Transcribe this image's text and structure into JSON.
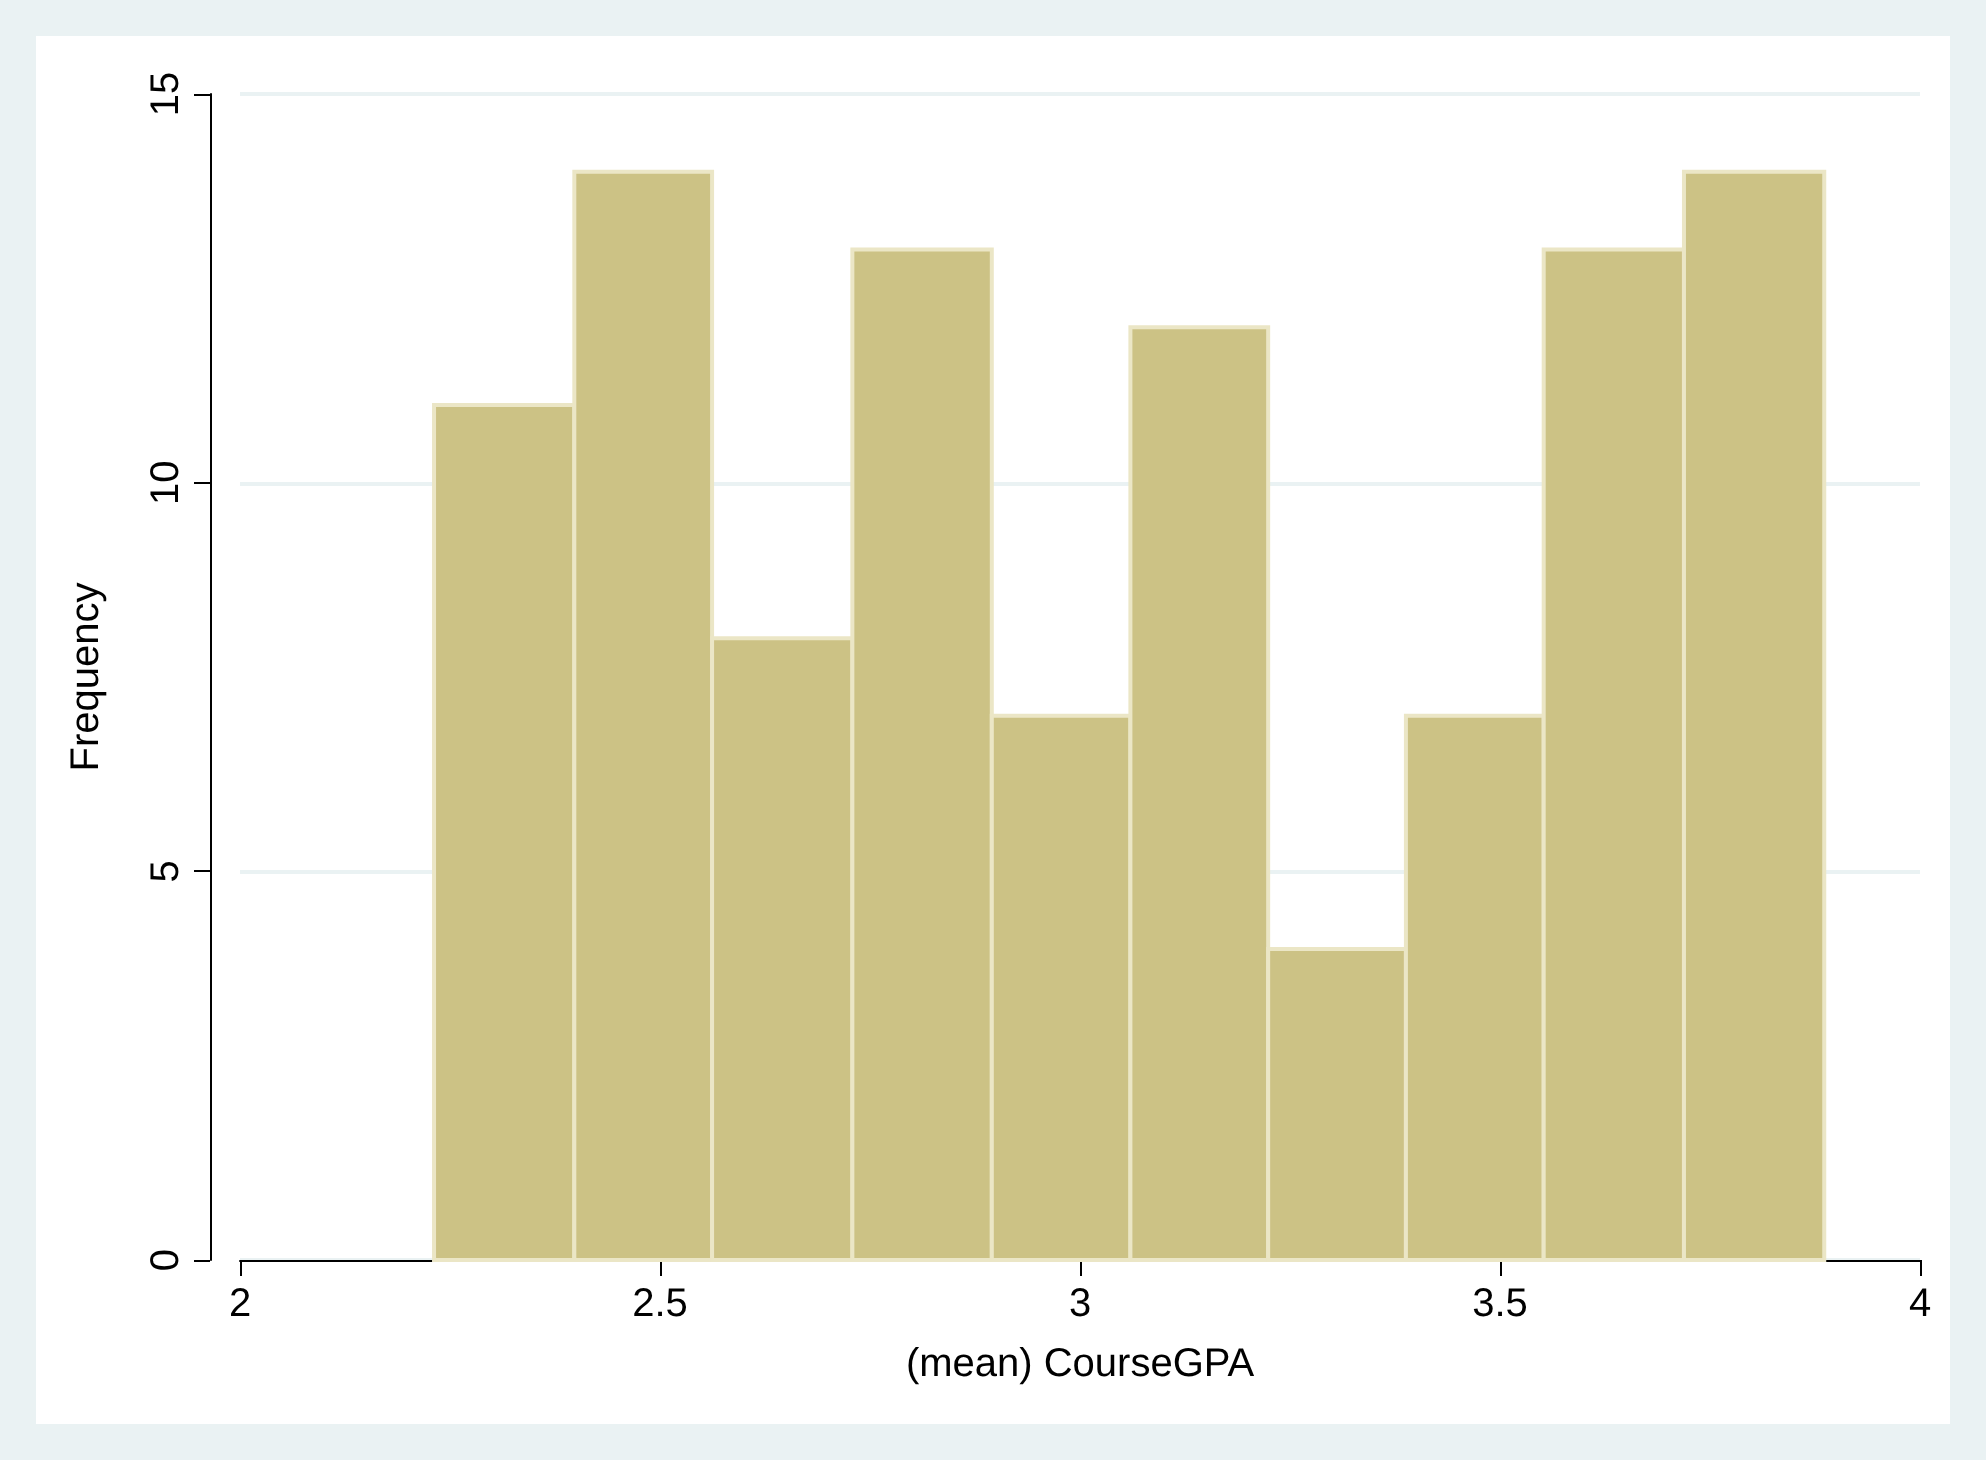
{
  "chart_data": {
    "type": "histogram",
    "xlabel": "(mean) CourseGPA",
    "ylabel": "Frequency",
    "bins": [
      2.231,
      2.398,
      2.562,
      2.729,
      2.895,
      3.06,
      3.224,
      3.388,
      3.552,
      3.719,
      3.886
    ],
    "values": [
      11,
      14,
      8,
      13,
      7,
      12,
      4,
      7,
      13,
      14
    ],
    "color": "#ccc285",
    "xlim": [
      2,
      4
    ],
    "xticks": [
      2,
      2.5,
      3,
      3.5,
      4
    ],
    "ylim": [
      0,
      15
    ],
    "yticks": [
      0,
      5,
      10,
      15
    ],
    "grid": "y"
  }
}
